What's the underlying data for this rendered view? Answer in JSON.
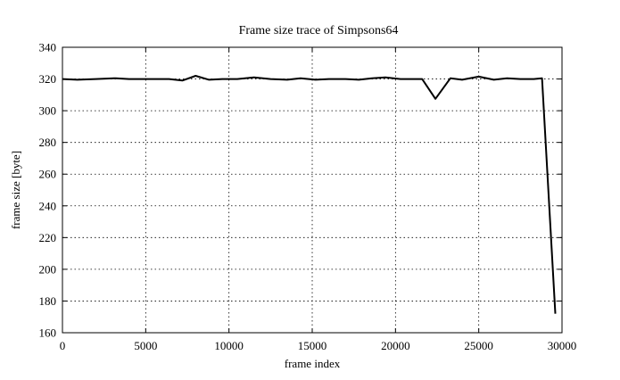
{
  "chart_data": {
    "type": "line",
    "title": "Frame size trace of Simpsons64",
    "xlabel": "frame index",
    "ylabel": "frame size [byte]",
    "xlim": [
      0,
      30000
    ],
    "ylim": [
      160,
      340
    ],
    "xticks": [
      0,
      5000,
      10000,
      15000,
      20000,
      25000,
      30000
    ],
    "yticks": [
      160,
      180,
      200,
      220,
      240,
      260,
      280,
      300,
      320,
      340
    ],
    "grid": true,
    "series": [
      {
        "values": [
          [
            0,
            320
          ],
          [
            900,
            319.5
          ],
          [
            2000,
            320
          ],
          [
            3200,
            320.5
          ],
          [
            4000,
            320
          ],
          [
            5000,
            320
          ],
          [
            6000,
            320
          ],
          [
            6400,
            320
          ],
          [
            7200,
            319
          ],
          [
            8000,
            322
          ],
          [
            8800,
            319.5
          ],
          [
            9600,
            320
          ],
          [
            10500,
            320
          ],
          [
            11500,
            321
          ],
          [
            12500,
            320
          ],
          [
            13500,
            319.5
          ],
          [
            14300,
            320.5
          ],
          [
            15200,
            319.5
          ],
          [
            16000,
            320
          ],
          [
            17000,
            320
          ],
          [
            17800,
            319.5
          ],
          [
            18600,
            320.5
          ],
          [
            19400,
            321
          ],
          [
            20300,
            320
          ],
          [
            21600,
            320
          ],
          [
            22400,
            307.5
          ],
          [
            23300,
            320.5
          ],
          [
            24000,
            319.5
          ],
          [
            25000,
            321.5
          ],
          [
            25900,
            319.5
          ],
          [
            26700,
            320.5
          ],
          [
            27500,
            320
          ],
          [
            28300,
            320
          ],
          [
            28800,
            320.5
          ],
          [
            29600,
            172
          ]
        ]
      }
    ]
  }
}
